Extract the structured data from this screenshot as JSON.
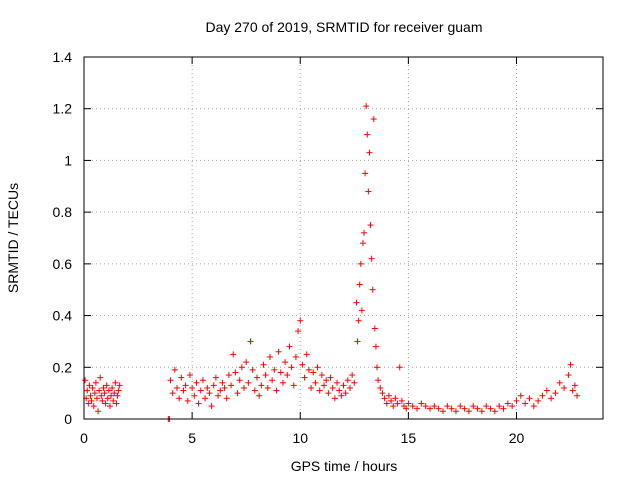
{
  "chart_data": {
    "type": "scatter",
    "title": "Day 270 of 2019, SRMTID for receiver guam",
    "xlabel": "GPS time / hours",
    "ylabel": "SRMTID / TECUs",
    "xlim": [
      0,
      24
    ],
    "ylim": [
      0,
      1.4
    ],
    "x_ticks": [
      0,
      5,
      10,
      15,
      20
    ],
    "y_ticks": [
      0,
      0.2,
      0.4,
      0.6,
      0.8,
      1,
      1.2,
      1.4
    ],
    "x_tick_labels": [
      "0",
      "5",
      "10",
      "15",
      "20"
    ],
    "y_tick_labels": [
      "0",
      "0.2",
      "0.4",
      "0.6",
      "0.8",
      "1",
      "1.2",
      "1.4"
    ],
    "grid": true,
    "marker": "+",
    "color": "#ff0000",
    "series": [
      {
        "name": "SRMTID",
        "points": [
          [
            0.05,
            0.15
          ],
          [
            0.1,
            0.08
          ],
          [
            0.15,
            0.11
          ],
          [
            0.2,
            0.06
          ],
          [
            0.25,
            0.13
          ],
          [
            0.3,
            0.09
          ],
          [
            0.35,
            0.07
          ],
          [
            0.4,
            0.12
          ],
          [
            0.45,
            0.05
          ],
          [
            0.5,
            0.1
          ],
          [
            0.55,
            0.14
          ],
          [
            0.6,
            0.08
          ],
          [
            0.65,
            0.03
          ],
          [
            0.7,
            0.11
          ],
          [
            0.75,
            0.16
          ],
          [
            0.8,
            0.09
          ],
          [
            0.85,
            0.07
          ],
          [
            0.9,
            0.12
          ],
          [
            0.95,
            0.1
          ],
          [
            1.0,
            0.06
          ],
          [
            1.05,
            0.13
          ],
          [
            1.1,
            0.08
          ],
          [
            1.15,
            0.11
          ],
          [
            1.2,
            0.05
          ],
          [
            1.25,
            0.09
          ],
          [
            1.3,
            0.12
          ],
          [
            1.35,
            0.07
          ],
          [
            1.4,
            0.1
          ],
          [
            1.45,
            0.14
          ],
          [
            1.5,
            0.06
          ],
          [
            1.55,
            0.09
          ],
          [
            1.6,
            0.11
          ],
          [
            1.65,
            0.13
          ],
          [
            3.9,
            0.0
          ],
          [
            3.95,
            0.0
          ],
          [
            4.0,
            0.15
          ],
          [
            4.1,
            0.1
          ],
          [
            4.2,
            0.19
          ],
          [
            4.3,
            0.12
          ],
          [
            4.4,
            0.08
          ],
          [
            4.5,
            0.16
          ],
          [
            4.6,
            0.11
          ],
          [
            4.7,
            0.13
          ],
          [
            4.8,
            0.07
          ],
          [
            4.9,
            0.17
          ],
          [
            5.0,
            0.12
          ],
          [
            5.1,
            0.09
          ],
          [
            5.2,
            0.14
          ],
          [
            5.3,
            0.06
          ],
          [
            5.4,
            0.11
          ],
          [
            5.5,
            0.15
          ],
          [
            5.6,
            0.08
          ],
          [
            5.7,
            0.12
          ],
          [
            5.8,
            0.1
          ],
          [
            5.9,
            0.05
          ],
          [
            6.0,
            0.13
          ],
          [
            6.1,
            0.16
          ],
          [
            6.2,
            0.09
          ],
          [
            6.3,
            0.11
          ],
          [
            6.4,
            0.14
          ],
          [
            6.5,
            0.12
          ],
          [
            6.6,
            0.08
          ],
          [
            6.7,
            0.17
          ],
          [
            6.8,
            0.13
          ],
          [
            6.9,
            0.25
          ],
          [
            7.0,
            0.18
          ],
          [
            7.1,
            0.1
          ],
          [
            7.2,
            0.15
          ],
          [
            7.3,
            0.2
          ],
          [
            7.4,
            0.12
          ],
          [
            7.5,
            0.22
          ],
          [
            7.6,
            0.14
          ],
          [
            7.7,
            0.3
          ],
          [
            7.8,
            0.19
          ],
          [
            7.9,
            0.11
          ],
          [
            8.0,
            0.16
          ],
          [
            8.1,
            0.09
          ],
          [
            8.2,
            0.13
          ],
          [
            8.3,
            0.21
          ],
          [
            8.4,
            0.17
          ],
          [
            8.5,
            0.12
          ],
          [
            8.6,
            0.24
          ],
          [
            8.7,
            0.15
          ],
          [
            8.8,
            0.19
          ],
          [
            8.9,
            0.11
          ],
          [
            9.0,
            0.26
          ],
          [
            9.1,
            0.18
          ],
          [
            9.2,
            0.14
          ],
          [
            9.3,
            0.22
          ],
          [
            9.4,
            0.17
          ],
          [
            9.5,
            0.28
          ],
          [
            9.6,
            0.2
          ],
          [
            9.7,
            0.13
          ],
          [
            9.8,
            0.24
          ],
          [
            9.9,
            0.34
          ],
          [
            10.0,
            0.38
          ],
          [
            10.1,
            0.21
          ],
          [
            10.2,
            0.16
          ],
          [
            10.3,
            0.25
          ],
          [
            10.4,
            0.19
          ],
          [
            10.5,
            0.12
          ],
          [
            10.6,
            0.18
          ],
          [
            10.7,
            0.14
          ],
          [
            10.8,
            0.2
          ],
          [
            10.9,
            0.11
          ],
          [
            11.0,
            0.17
          ],
          [
            11.1,
            0.13
          ],
          [
            11.2,
            0.15
          ],
          [
            11.3,
            0.1
          ],
          [
            11.4,
            0.16
          ],
          [
            11.5,
            0.12
          ],
          [
            11.6,
            0.08
          ],
          [
            11.7,
            0.14
          ],
          [
            11.8,
            0.11
          ],
          [
            11.9,
            0.09
          ],
          [
            12.0,
            0.13
          ],
          [
            12.1,
            0.1
          ],
          [
            12.2,
            0.15
          ],
          [
            12.3,
            0.12
          ],
          [
            12.4,
            0.17
          ],
          [
            12.5,
            0.14
          ],
          [
            12.6,
            0.45
          ],
          [
            12.65,
            0.3
          ],
          [
            12.7,
            0.38
          ],
          [
            12.75,
            0.52
          ],
          [
            12.8,
            0.6
          ],
          [
            12.85,
            0.42
          ],
          [
            12.9,
            0.68
          ],
          [
            12.95,
            0.72
          ],
          [
            13.0,
            0.95
          ],
          [
            13.05,
            1.21
          ],
          [
            13.1,
            1.1
          ],
          [
            13.15,
            0.88
          ],
          [
            13.2,
            1.03
          ],
          [
            13.25,
            0.75
          ],
          [
            13.3,
            0.62
          ],
          [
            13.35,
            0.5
          ],
          [
            13.4,
            1.16
          ],
          [
            13.45,
            0.35
          ],
          [
            13.5,
            0.28
          ],
          [
            13.55,
            0.2
          ],
          [
            13.6,
            0.15
          ],
          [
            13.7,
            0.12
          ],
          [
            13.8,
            0.1
          ],
          [
            13.9,
            0.08
          ],
          [
            14.0,
            0.06
          ],
          [
            14.1,
            0.09
          ],
          [
            14.2,
            0.07
          ],
          [
            14.3,
            0.05
          ],
          [
            14.4,
            0.08
          ],
          [
            14.5,
            0.06
          ],
          [
            14.6,
            0.2
          ],
          [
            14.7,
            0.07
          ],
          [
            14.8,
            0.05
          ],
          [
            14.9,
            0.04
          ],
          [
            15.0,
            0.06
          ],
          [
            15.2,
            0.05
          ],
          [
            15.4,
            0.04
          ],
          [
            15.6,
            0.06
          ],
          [
            15.8,
            0.05
          ],
          [
            16.0,
            0.04
          ],
          [
            16.2,
            0.05
          ],
          [
            16.4,
            0.04
          ],
          [
            16.6,
            0.03
          ],
          [
            16.8,
            0.05
          ],
          [
            17.0,
            0.04
          ],
          [
            17.2,
            0.03
          ],
          [
            17.4,
            0.05
          ],
          [
            17.6,
            0.04
          ],
          [
            17.8,
            0.03
          ],
          [
            18.0,
            0.05
          ],
          [
            18.2,
            0.04
          ],
          [
            18.4,
            0.03
          ],
          [
            18.6,
            0.05
          ],
          [
            18.8,
            0.04
          ],
          [
            19.0,
            0.03
          ],
          [
            19.2,
            0.05
          ],
          [
            19.4,
            0.04
          ],
          [
            19.6,
            0.06
          ],
          [
            19.8,
            0.05
          ],
          [
            20.0,
            0.07
          ],
          [
            20.2,
            0.09
          ],
          [
            20.4,
            0.06
          ],
          [
            20.6,
            0.08
          ],
          [
            20.8,
            0.05
          ],
          [
            21.0,
            0.07
          ],
          [
            21.2,
            0.09
          ],
          [
            21.4,
            0.11
          ],
          [
            21.6,
            0.08
          ],
          [
            21.8,
            0.1
          ],
          [
            22.0,
            0.14
          ],
          [
            22.2,
            0.12
          ],
          [
            22.4,
            0.17
          ],
          [
            22.5,
            0.21
          ],
          [
            22.6,
            0.11
          ],
          [
            22.7,
            0.13
          ],
          [
            22.8,
            0.09
          ]
        ]
      }
    ]
  }
}
